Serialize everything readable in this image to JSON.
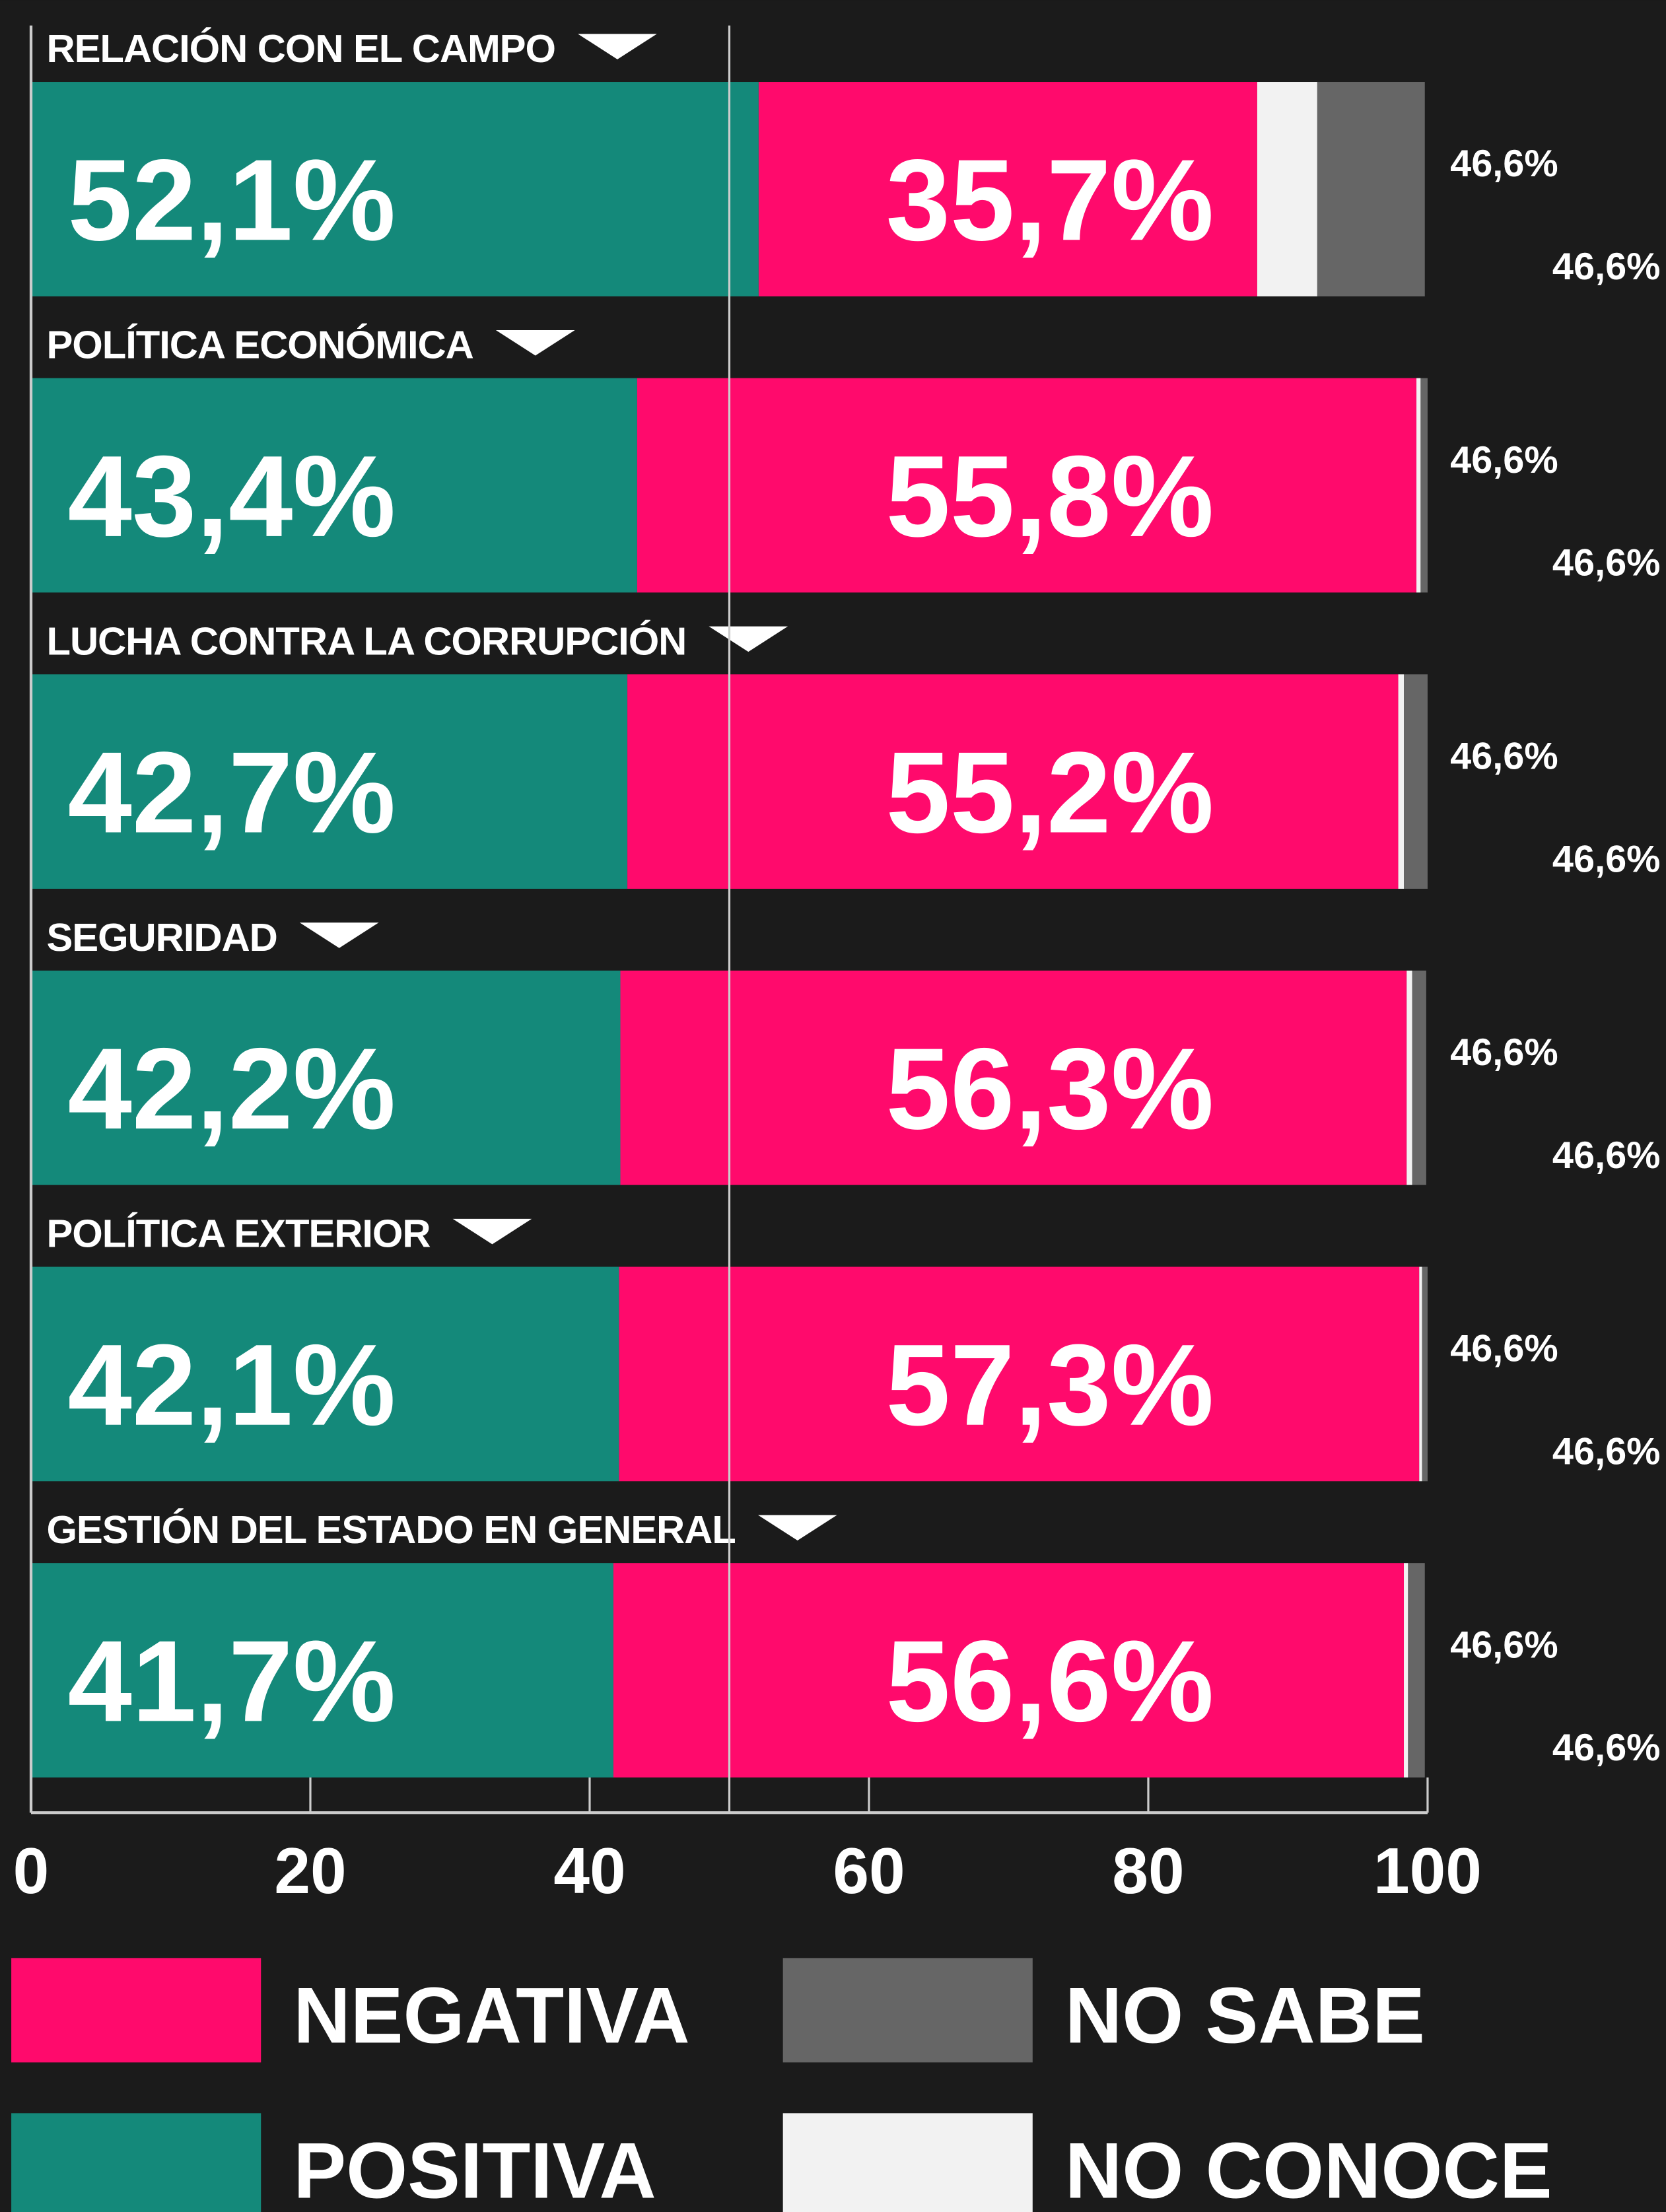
{
  "chart_data": {
    "type": "stacked-bar-horizontal",
    "categories": [
      "RELACIÓN CON EL CAMPO",
      "POLÍTICA  ECONÓMICA",
      "LUCHA CONTRA LA CORRUPCIÓN",
      "SEGURIDAD",
      "POLÍTICA EXTERIOR",
      "GESTIÓN DEL ESTADO EN GENERAL"
    ],
    "series": [
      {
        "name": "POSITIVA",
        "color": "#14897a",
        "values": [
          52.1,
          43.4,
          42.7,
          42.2,
          42.1,
          41.7
        ],
        "value_labels": [
          "52,1%",
          "43,4%",
          "42,7%",
          "42,2%",
          "42,1%",
          "41,7%"
        ]
      },
      {
        "name": "NEGATIVA",
        "color": "#ff0a6c",
        "values": [
          35.7,
          55.8,
          55.2,
          56.3,
          57.3,
          56.6
        ],
        "value_labels": [
          "35,7%",
          "55,8%",
          "55,2%",
          "56,3%",
          "57,3%",
          "56,6%"
        ]
      },
      {
        "name": "NO CONOCE",
        "color": "#f2f2f2",
        "values": [
          4.3,
          0.3,
          0.4,
          0.4,
          0.2,
          0.3
        ]
      },
      {
        "name": "NO SABE",
        "color": "#666666",
        "values": [
          7.7,
          0.5,
          1.7,
          1.0,
          0.4,
          1.2
        ]
      }
    ],
    "side_labels": [
      [
        "46,6%",
        "46,6%"
      ],
      [
        "46,6%",
        "46,6%"
      ],
      [
        "46,6%",
        "46,6%"
      ],
      [
        "46,6%",
        "46,6%"
      ],
      [
        "46,6%",
        "46,6%"
      ],
      [
        "46,6%",
        "46,6%"
      ]
    ],
    "xlim": [
      0,
      100
    ],
    "xticks": [
      0,
      20,
      40,
      60,
      80,
      100
    ],
    "reference_line": 50
  }
}
